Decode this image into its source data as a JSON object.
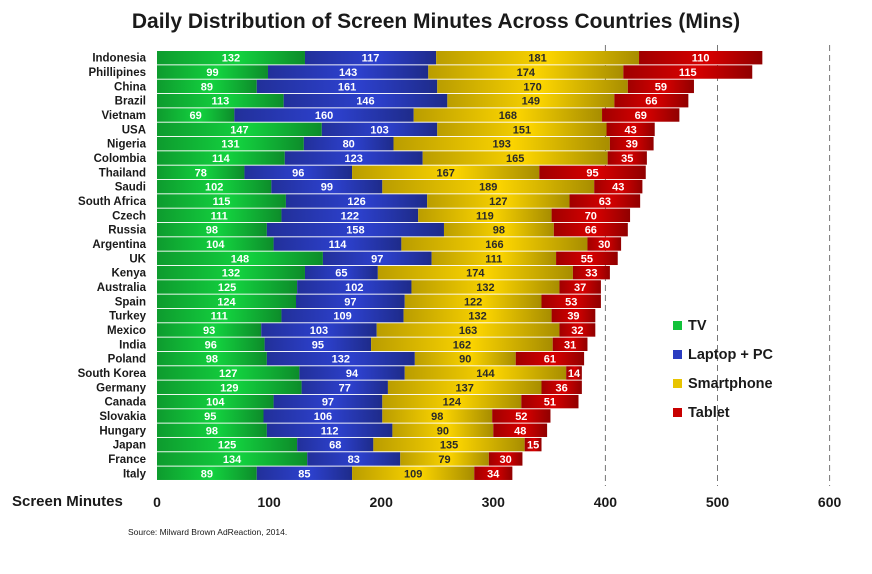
{
  "chart_data": {
    "type": "bar",
    "orientation": "horizontal",
    "stacked": true,
    "title": "Daily Distribution of Screen Minutes Across Countries (Mins)",
    "xlabel": "Screen Minutes",
    "source": "Source: Milward Brown AdReaction, 2014.",
    "xlim": [
      0,
      600
    ],
    "xticks": [
      "0",
      "100",
      "200",
      "300",
      "400",
      "500",
      "600"
    ],
    "grid": "dashed vertical at 400, 500, 600",
    "legend_position": "right",
    "categories": [
      "Indonesia",
      "Phillipines",
      "China",
      "Brazil",
      "Vietnam",
      "USA",
      "Nigeria",
      "Colombia",
      "Thailand",
      "Saudi",
      "South Africa",
      "Czech",
      "Russia",
      "Argentina",
      "UK",
      "Kenya",
      "Australia",
      "Spain",
      "Turkey",
      "Mexico",
      "India",
      "Poland",
      "South Korea",
      "Germany",
      "Canada",
      "Slovakia",
      "Hungary",
      "Japan",
      "France",
      "Italy"
    ],
    "series": [
      {
        "name": "TV",
        "color": "#12c23a",
        "values": [
          132,
          99,
          89,
          113,
          69,
          147,
          131,
          114,
          78,
          102,
          115,
          111,
          98,
          104,
          148,
          132,
          125,
          124,
          111,
          93,
          96,
          98,
          127,
          129,
          104,
          95,
          98,
          125,
          134,
          89
        ]
      },
      {
        "name": "Laptop + PC",
        "color": "#2a3cc0",
        "values": [
          117,
          143,
          161,
          146,
          160,
          103,
          80,
          123,
          96,
          99,
          126,
          122,
          158,
          114,
          97,
          65,
          102,
          97,
          109,
          103,
          95,
          132,
          94,
          77,
          97,
          106,
          112,
          68,
          83,
          85
        ]
      },
      {
        "name": "Smartphone",
        "color": "#e8c400",
        "values": [
          181,
          174,
          170,
          149,
          168,
          151,
          193,
          165,
          167,
          189,
          127,
          119,
          98,
          166,
          111,
          174,
          132,
          122,
          132,
          163,
          162,
          90,
          144,
          137,
          124,
          98,
          90,
          135,
          79,
          109
        ]
      },
      {
        "name": "Tablet",
        "color": "#c80000",
        "values": [
          110,
          115,
          59,
          66,
          69,
          43,
          39,
          35,
          95,
          43,
          63,
          70,
          66,
          30,
          55,
          33,
          37,
          53,
          39,
          32,
          31,
          61,
          14,
          36,
          51,
          52,
          48,
          15,
          30,
          34
        ]
      }
    ]
  }
}
